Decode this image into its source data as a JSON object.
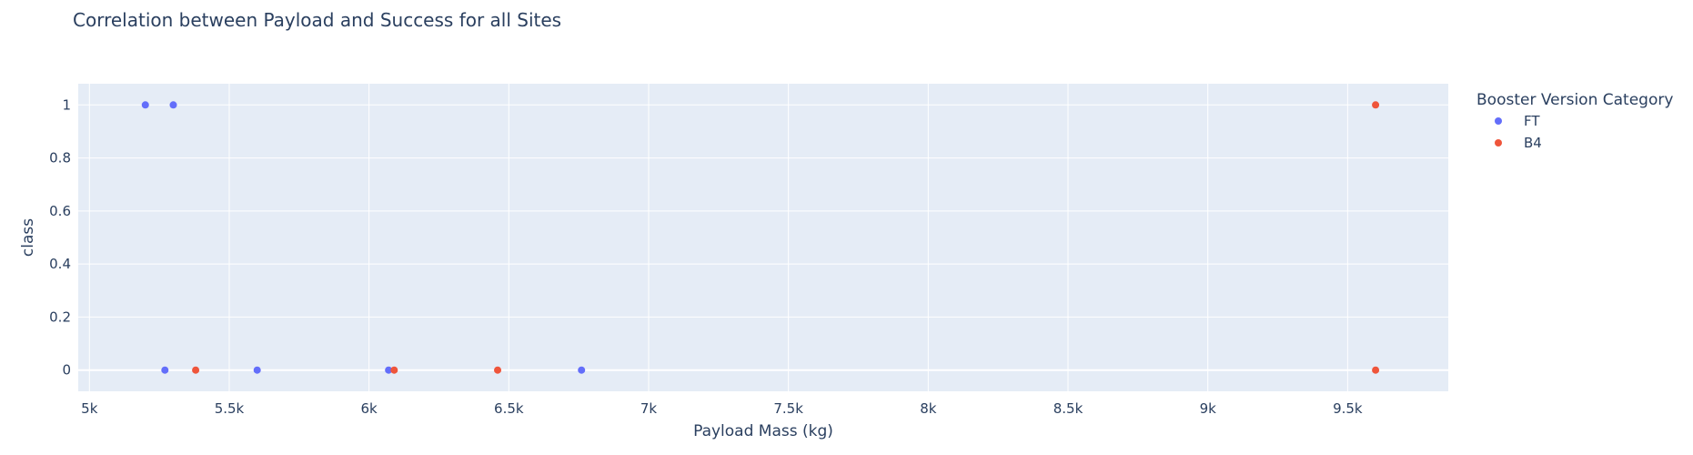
{
  "chart_data": {
    "type": "scatter",
    "title": "Correlation between Payload and Success for all Sites",
    "xlabel": "Payload Mass (kg)",
    "ylabel": "class",
    "xlim": [
      4960,
      9860
    ],
    "ylim": [
      -0.08,
      1.08
    ],
    "x_ticks": [
      5000,
      5500,
      6000,
      6500,
      7000,
      7500,
      8000,
      8500,
      9000,
      9500
    ],
    "x_tick_labels": [
      "5k",
      "5.5k",
      "6k",
      "6.5k",
      "7k",
      "7.5k",
      "8k",
      "8.5k",
      "9k",
      "9.5k"
    ],
    "y_ticks": [
      0,
      0.2,
      0.4,
      0.6,
      0.8,
      1
    ],
    "y_tick_labels": [
      "0",
      "0.2",
      "0.4",
      "0.6",
      "0.8",
      "1"
    ],
    "grid": true,
    "legend": {
      "title": "Booster Version Category",
      "position": "top-right"
    },
    "series": [
      {
        "name": "FT",
        "color": "#636efa",
        "points": [
          {
            "x": 5200,
            "y": 1
          },
          {
            "x": 5300,
            "y": 1
          },
          {
            "x": 5270,
            "y": 0
          },
          {
            "x": 5600,
            "y": 0
          },
          {
            "x": 6070,
            "y": 0
          },
          {
            "x": 6760,
            "y": 0
          }
        ]
      },
      {
        "name": "B4",
        "color": "#ef553b",
        "points": [
          {
            "x": 5380,
            "y": 0
          },
          {
            "x": 6090,
            "y": 0
          },
          {
            "x": 6460,
            "y": 0
          },
          {
            "x": 9600,
            "y": 0
          },
          {
            "x": 9600,
            "y": 1
          }
        ]
      }
    ]
  }
}
